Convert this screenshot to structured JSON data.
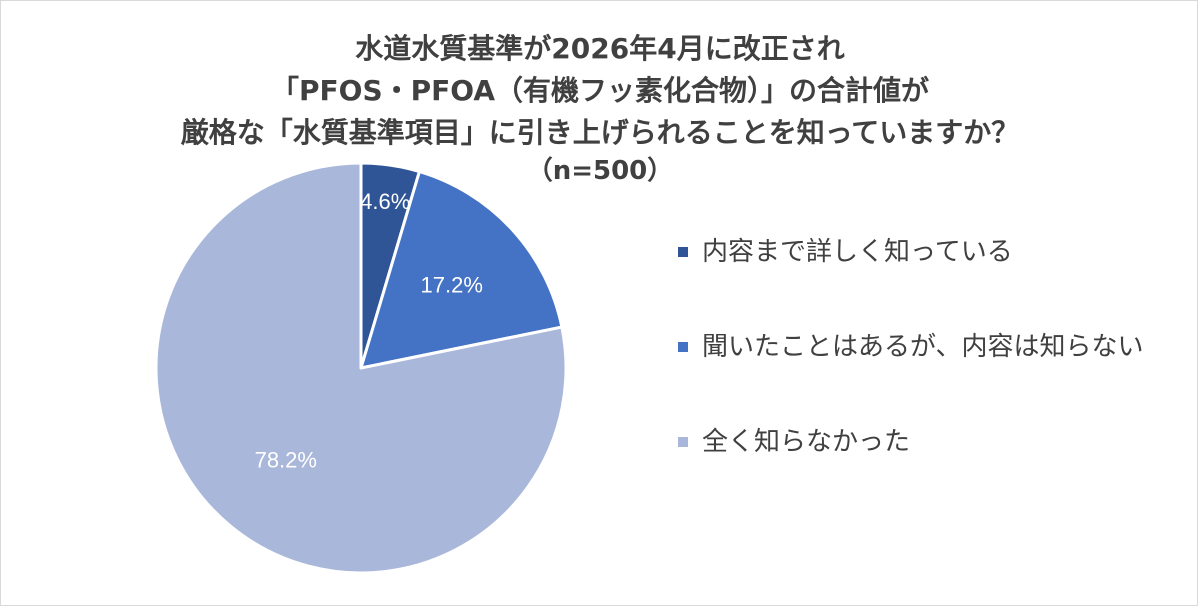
{
  "chart_data": {
    "type": "pie",
    "title": [
      "水道水質基準が2026年4月に改正され",
      "「PFOS・PFOA（有機フッ素化合物）」の合計値が",
      "厳格な「水質基準項目」に引き上げられることを知っていますか？"
    ],
    "subtitle": "（n=500）",
    "slices": [
      {
        "label": "内容まで詳しく知っている",
        "value": 4.6,
        "display": "4.6%",
        "color": "#2f5597"
      },
      {
        "label": "聞いたことはあるが、内容は知らない",
        "value": 17.2,
        "display": "17.2%",
        "color": "#4472c4"
      },
      {
        "label": "全く知らなかった",
        "value": 78.2,
        "display": "78.2%",
        "color": "#a9b7da"
      }
    ],
    "legend_position": "right",
    "start_angle": "top, clockwise"
  }
}
